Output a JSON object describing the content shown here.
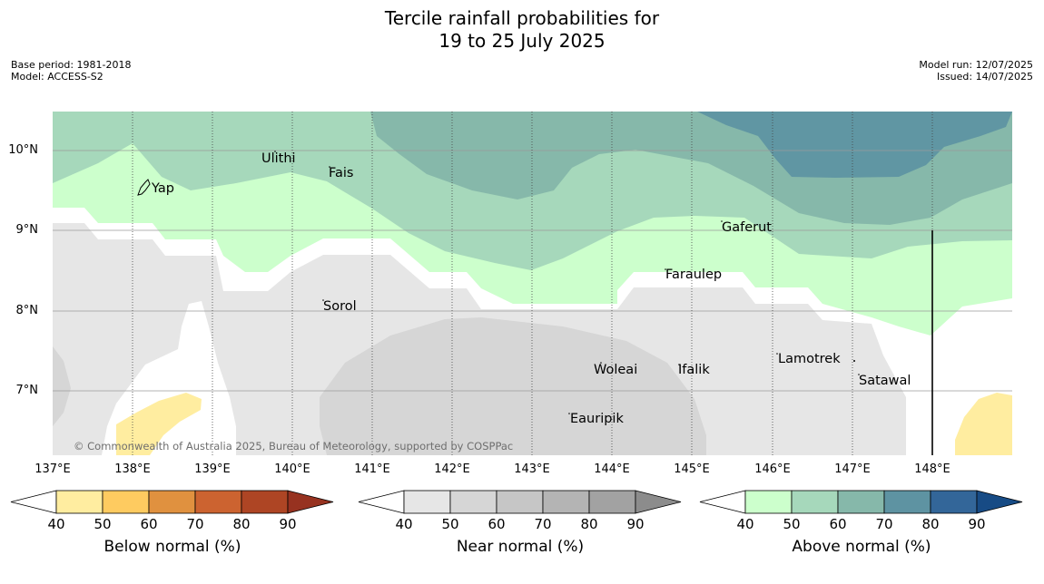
{
  "title_line1": "Tercile rainfall probabilities for",
  "title_line2": "19 to 25 July 2025",
  "base_period": "Base period: 1981-2018",
  "model": "Model: ACCESS-S2",
  "model_run": "Model run: 12/07/2025",
  "issued": "Issued: 14/07/2025",
  "copyright": "© Commonwealth of Australia 2025, Bureau of Meteorology, supported by COSPPac",
  "lat_labels": [
    "10°N",
    "9°N",
    "8°N",
    "7°N"
  ],
  "lon_labels": [
    "137°E",
    "138°E",
    "139°E",
    "140°E",
    "141°E",
    "142°E",
    "143°E",
    "144°E",
    "145°E",
    "146°E",
    "147°E",
    "148°E"
  ],
  "places": {
    "ulithi": "Ulithi",
    "fais": "Fais",
    "yap": "Yap",
    "gaferut": "Gaferut",
    "faraulep": "Faraulep",
    "sorol": "Sorol",
    "woleai": "Woleai",
    "ifalik": "Ifalik",
    "lamotrek": "Lamotrek",
    "satawal": "Satawal",
    "eauripik": "Eauripik"
  },
  "colorbars": [
    {
      "label": "Below normal (%)",
      "ticks": [
        "40",
        "50",
        "60",
        "70",
        "80",
        "90"
      ],
      "colors": [
        "#ffeda0",
        "#fecb60",
        "#e0913f",
        "#cc6330",
        "#ae4524",
        "#973220"
      ]
    },
    {
      "label": "Near normal (%)",
      "ticks": [
        "40",
        "50",
        "60",
        "70",
        "80",
        "90"
      ],
      "colors": [
        "#e6e6e6",
        "#d6d6d6",
        "#c6c6c6",
        "#b4b4b4",
        "#a2a2a2",
        "#8c8c8c"
      ]
    },
    {
      "label": "Above normal (%)",
      "ticks": [
        "40",
        "50",
        "60",
        "70",
        "80",
        "90"
      ],
      "colors": [
        "#ccffcc",
        "#a6d8bb",
        "#86b8aa",
        "#5e93a2",
        "#336699",
        "#174b85"
      ]
    }
  ]
}
